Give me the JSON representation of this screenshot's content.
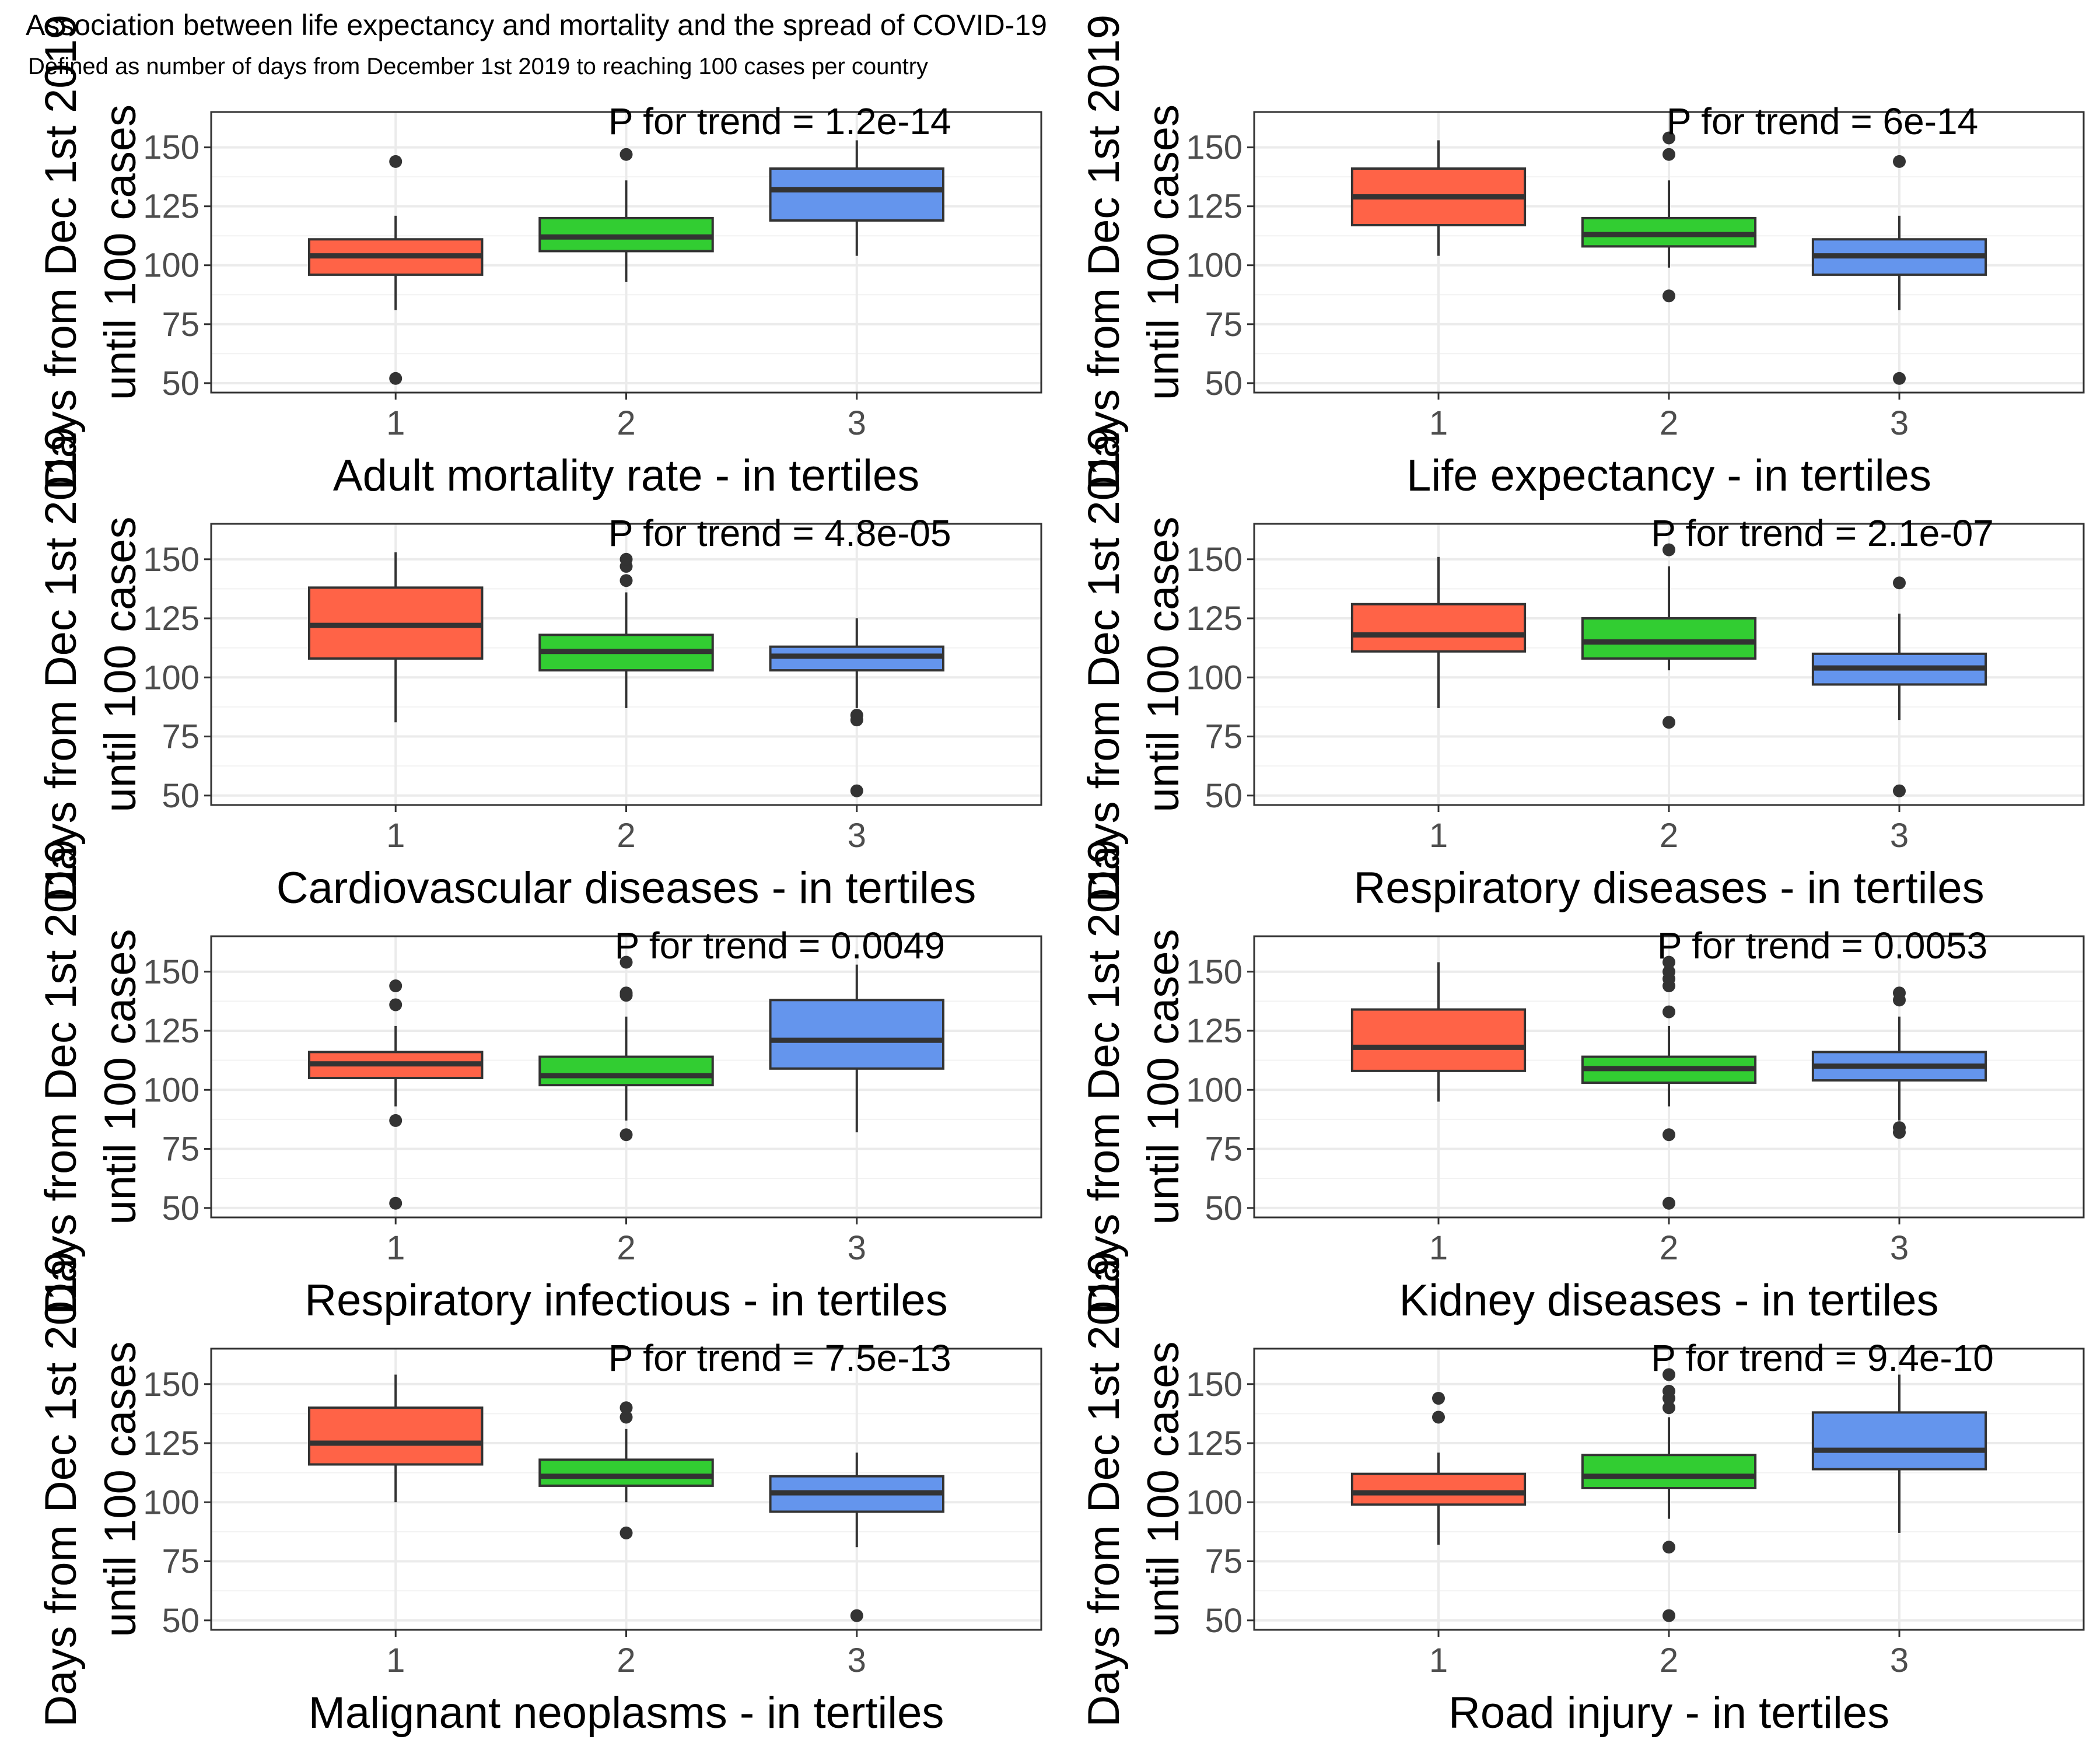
{
  "title": "Association between life expectancy and mortality and the spread of COVID-19",
  "subtitle": "Defined as number of days from December 1st 2019 to reaching 100 cases per country",
  "colors": {
    "tertile1": "#FF6347",
    "tertile2": "#32CD32",
    "tertile3": "#6495ED"
  },
  "chart_data": [
    {
      "type": "box",
      "xlabel": "Adult mortality rate - in tertiles",
      "ylabel": "Days from Dec 1st 2019 until 100 cases",
      "annotation": "P for trend = 1.2e-14",
      "categories": [
        "1",
        "2",
        "3"
      ],
      "ylim": [
        46,
        165
      ],
      "yticks": [
        50,
        75,
        100,
        125,
        150
      ],
      "boxes": [
        {
          "category": "1",
          "lower": 81,
          "q1": 96,
          "median": 104,
          "q3": 111,
          "upper": 121,
          "outliers": [
            52,
            144
          ]
        },
        {
          "category": "2",
          "lower": 93,
          "q1": 106,
          "median": 112,
          "q3": 120,
          "upper": 136,
          "outliers": [
            147
          ]
        },
        {
          "category": "3",
          "lower": 104,
          "q1": 119,
          "median": 132,
          "q3": 141,
          "upper": 153,
          "outliers": []
        }
      ]
    },
    {
      "type": "box",
      "xlabel": "Life expectancy - in tertiles",
      "ylabel": "Days from Dec 1st 2019 until 100 cases",
      "annotation": "P for trend = 6e-14",
      "categories": [
        "1",
        "2",
        "3"
      ],
      "ylim": [
        46,
        165
      ],
      "yticks": [
        50,
        75,
        100,
        125,
        150
      ],
      "boxes": [
        {
          "category": "1",
          "lower": 104,
          "q1": 117,
          "median": 129,
          "q3": 141,
          "upper": 153,
          "outliers": []
        },
        {
          "category": "2",
          "lower": 99,
          "q1": 108,
          "median": 113,
          "q3": 120,
          "upper": 136,
          "outliers": [
            87,
            147,
            154
          ]
        },
        {
          "category": "3",
          "lower": 81,
          "q1": 96,
          "median": 104,
          "q3": 111,
          "upper": 121,
          "outliers": [
            52,
            144
          ]
        }
      ]
    },
    {
      "type": "box",
      "xlabel": "Cardiovascular diseases - in tertiles",
      "ylabel": "Days from Dec 1st 2019 until 100 cases",
      "annotation": "P for trend = 4.8e-05",
      "categories": [
        "1",
        "2",
        "3"
      ],
      "ylim": [
        46,
        165
      ],
      "yticks": [
        50,
        75,
        100,
        125,
        150
      ],
      "boxes": [
        {
          "category": "1",
          "lower": 81,
          "q1": 108,
          "median": 122,
          "q3": 138,
          "upper": 153,
          "outliers": []
        },
        {
          "category": "2",
          "lower": 87,
          "q1": 103,
          "median": 111,
          "q3": 118,
          "upper": 136,
          "outliers": [
            141,
            147,
            150
          ]
        },
        {
          "category": "3",
          "lower": 87,
          "q1": 103,
          "median": 109,
          "q3": 113,
          "upper": 125,
          "outliers": [
            52,
            82,
            84
          ]
        }
      ]
    },
    {
      "type": "box",
      "xlabel": "Respiratory diseases - in tertiles",
      "ylabel": "Days from Dec 1st 2019 until 100 cases",
      "annotation": "P for trend = 2.1e-07",
      "categories": [
        "1",
        "2",
        "3"
      ],
      "ylim": [
        46,
        165
      ],
      "yticks": [
        50,
        75,
        100,
        125,
        150
      ],
      "boxes": [
        {
          "category": "1",
          "lower": 87,
          "q1": 111,
          "median": 118,
          "q3": 131,
          "upper": 151,
          "outliers": []
        },
        {
          "category": "2",
          "lower": 103,
          "q1": 108,
          "median": 115,
          "q3": 125,
          "upper": 147,
          "outliers": [
            81,
            154
          ]
        },
        {
          "category": "3",
          "lower": 82,
          "q1": 97,
          "median": 104,
          "q3": 110,
          "upper": 127,
          "outliers": [
            52,
            140
          ]
        }
      ]
    },
    {
      "type": "box",
      "xlabel": "Respiratory infectious - in tertiles",
      "ylabel": "Days from Dec 1st 2019 until 100 cases",
      "annotation": "P for trend = 0.0049",
      "categories": [
        "1",
        "2",
        "3"
      ],
      "ylim": [
        46,
        165
      ],
      "yticks": [
        50,
        75,
        100,
        125,
        150
      ],
      "boxes": [
        {
          "category": "1",
          "lower": 93,
          "q1": 105,
          "median": 111,
          "q3": 116,
          "upper": 127,
          "outliers": [
            52,
            87,
            136,
            144
          ]
        },
        {
          "category": "2",
          "lower": 87,
          "q1": 102,
          "median": 106,
          "q3": 114,
          "upper": 131,
          "outliers": [
            81,
            140,
            141,
            154
          ]
        },
        {
          "category": "3",
          "lower": 82,
          "q1": 109,
          "median": 121,
          "q3": 138,
          "upper": 153,
          "outliers": []
        }
      ]
    },
    {
      "type": "box",
      "xlabel": "Kidney diseases - in tertiles",
      "ylabel": "Days from Dec 1st 2019 until 100 cases",
      "annotation": "P for trend = 0.0053",
      "categories": [
        "1",
        "2",
        "3"
      ],
      "ylim": [
        46,
        165
      ],
      "yticks": [
        50,
        75,
        100,
        125,
        150
      ],
      "boxes": [
        {
          "category": "1",
          "lower": 95,
          "q1": 108,
          "median": 118,
          "q3": 134,
          "upper": 154,
          "outliers": []
        },
        {
          "category": "2",
          "lower": 93,
          "q1": 103,
          "median": 109,
          "q3": 114,
          "upper": 127,
          "outliers": [
            52,
            81,
            133,
            144,
            147,
            150,
            154
          ]
        },
        {
          "category": "3",
          "lower": 87,
          "q1": 104,
          "median": 110,
          "q3": 116,
          "upper": 131,
          "outliers": [
            82,
            84,
            138,
            141
          ]
        }
      ]
    },
    {
      "type": "box",
      "xlabel": "Malignant neoplasms - in tertiles",
      "ylabel": "Days from Dec 1st 2019 until 100 cases",
      "annotation": "P for trend = 7.5e-13",
      "categories": [
        "1",
        "2",
        "3"
      ],
      "ylim": [
        46,
        165
      ],
      "yticks": [
        50,
        75,
        100,
        125,
        150
      ],
      "boxes": [
        {
          "category": "1",
          "lower": 100,
          "q1": 116,
          "median": 125,
          "q3": 140,
          "upper": 154,
          "outliers": []
        },
        {
          "category": "2",
          "lower": 100,
          "q1": 107,
          "median": 111,
          "q3": 118,
          "upper": 131,
          "outliers": [
            87,
            136,
            140
          ]
        },
        {
          "category": "3",
          "lower": 81,
          "q1": 96,
          "median": 104,
          "q3": 111,
          "upper": 121,
          "outliers": [
            52
          ]
        }
      ]
    },
    {
      "type": "box",
      "xlabel": "Road injury - in tertiles",
      "ylabel": "Days from Dec 1st 2019 until 100 cases",
      "annotation": "P for trend = 9.4e-10",
      "categories": [
        "1",
        "2",
        "3"
      ],
      "ylim": [
        46,
        165
      ],
      "yticks": [
        50,
        75,
        100,
        125,
        150
      ],
      "boxes": [
        {
          "category": "1",
          "lower": 82,
          "q1": 99,
          "median": 104,
          "q3": 112,
          "upper": 121,
          "outliers": [
            136,
            144
          ]
        },
        {
          "category": "2",
          "lower": 93,
          "q1": 106,
          "median": 111,
          "q3": 120,
          "upper": 136,
          "outliers": [
            52,
            81,
            140,
            144,
            147,
            154
          ]
        },
        {
          "category": "3",
          "lower": 87,
          "q1": 114,
          "median": 122,
          "q3": 138,
          "upper": 154,
          "outliers": []
        }
      ]
    }
  ]
}
